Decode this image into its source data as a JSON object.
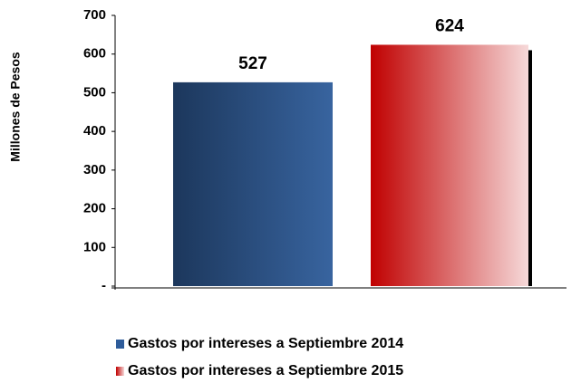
{
  "chart_data": {
    "type": "bar",
    "y_label": "Millones de Pesos",
    "categories": [
      null
    ],
    "series": [
      {
        "name": "Gastos por intereses a Septiembre 2014",
        "color": "#2e5c9a",
        "values": [
          527
        ]
      },
      {
        "name": "Gastos por intereses a Septiembre 2015",
        "color": "#c00000",
        "values": [
          624
        ]
      }
    ],
    "ylim": [
      0,
      700
    ],
    "yticks": [
      {
        "value": 0,
        "label": "-"
      },
      100,
      200,
      300,
      400,
      500,
      600,
      700
    ]
  }
}
